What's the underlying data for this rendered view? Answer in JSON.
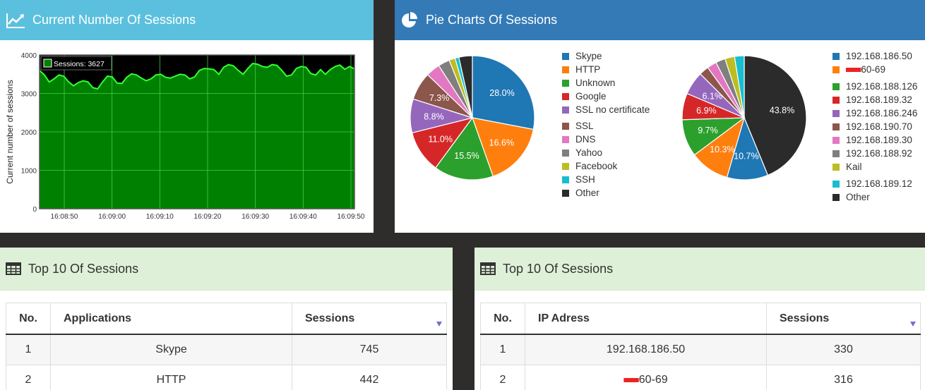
{
  "line_panel": {
    "title": "Current Number Of Sessions"
  },
  "pie_panel": {
    "title": "Pie Charts Of Sessions"
  },
  "apps_table": {
    "title": "Top 10 Of Sessions",
    "columns": [
      "No.",
      "Applications",
      "Sessions"
    ],
    "rows": [
      [
        "1",
        "Skype",
        "745"
      ],
      [
        "2",
        "HTTP",
        "442"
      ]
    ]
  },
  "ip_table": {
    "title": "Top 10 Of Sessions",
    "columns": [
      "No.",
      "IP Adress",
      "Sessions"
    ],
    "rows": [
      [
        "1",
        "192.168.186.50",
        "330"
      ],
      [
        "2",
        "60-69",
        "316"
      ]
    ]
  },
  "chart_data": [
    {
      "type": "area",
      "ylabel": "Current number of sessions",
      "ylim": [
        0,
        4000
      ],
      "yticks": [
        0,
        1000,
        2000,
        3000,
        4000
      ],
      "xticks": [
        "16:08:50",
        "16:09:00",
        "16:09:10",
        "16:09:20",
        "16:09:30",
        "16:09:40",
        "16:09:50"
      ],
      "xlim": [
        0,
        65
      ],
      "legend": "Sessions: 3627",
      "grid": true,
      "colors": {
        "fill": "#008000",
        "line": "#33ff33",
        "background": "#000000"
      },
      "x": [
        0,
        1,
        2,
        3,
        4,
        5,
        6,
        7,
        8,
        9,
        10,
        11,
        12,
        13,
        14,
        15,
        16,
        17,
        18,
        19,
        20,
        21,
        22,
        23,
        24,
        25,
        26,
        27,
        28,
        29,
        30,
        31,
        32,
        33,
        34,
        35,
        36,
        37,
        38,
        39,
        40,
        41,
        42,
        43,
        44,
        45,
        46,
        47,
        48,
        49,
        50,
        51,
        52,
        53,
        54,
        55,
        56,
        57,
        58,
        59,
        60,
        61,
        62,
        63,
        64,
        65
      ],
      "values": [
        3600,
        3480,
        3300,
        3380,
        3480,
        3450,
        3300,
        3200,
        3280,
        3330,
        3300,
        3150,
        3120,
        3300,
        3450,
        3430,
        3270,
        3260,
        3420,
        3510,
        3480,
        3400,
        3330,
        3380,
        3480,
        3500,
        3420,
        3400,
        3450,
        3500,
        3480,
        3380,
        3430,
        3600,
        3650,
        3640,
        3620,
        3500,
        3680,
        3750,
        3720,
        3600,
        3500,
        3650,
        3780,
        3760,
        3700,
        3680,
        3750,
        3730,
        3600,
        3450,
        3480,
        3650,
        3700,
        3680,
        3520,
        3480,
        3620,
        3500,
        3620,
        3700,
        3740,
        3627,
        3700,
        3640
      ]
    },
    {
      "type": "pie",
      "categories": [
        "Skype",
        "HTTP",
        "Unknown",
        "Google",
        "SSL no certificate",
        "SSL",
        "DNS",
        "Yahoo",
        "Facebook",
        "SSH",
        "Other"
      ],
      "values": [
        28.0,
        16.6,
        15.5,
        11.0,
        8.8,
        7.3,
        3.7,
        3.0,
        1.6,
        1.0,
        3.5
      ],
      "data_labels": [
        "28.0%",
        "16.6%",
        "15.5%",
        "11.0%",
        "8.8%",
        "7.3%",
        "",
        "",
        "",
        "",
        ""
      ],
      "colors": [
        "#1f77b4",
        "#ff7f0e",
        "#2ca02c",
        "#d62728",
        "#9467bd",
        "#8c564b",
        "#e377c2",
        "#7f7f7f",
        "#bcbd22",
        "#17becf",
        "#2b2b2b"
      ],
      "legend": "right"
    },
    {
      "type": "pie",
      "categories": [
        "Other",
        "192.168.186.50",
        "60-69",
        "192.168.188.126",
        "192.168.189.32",
        "192.168.186.246",
        "192.168.190.70",
        "192.168.189.30",
        "192.168.188.92",
        "Kail",
        "192.168.189.12"
      ],
      "values": [
        43.8,
        10.7,
        10.3,
        9.7,
        6.9,
        6.1,
        2.5,
        2.5,
        2.5,
        2.5,
        2.5
      ],
      "data_labels": [
        "43.8%",
        "10.7%",
        "10.3%",
        "9.7%",
        "6.9%",
        "6.1%",
        "",
        "",
        "",
        "",
        ""
      ],
      "colors": [
        "#2b2b2b",
        "#1f77b4",
        "#ff7f0e",
        "#2ca02c",
        "#d62728",
        "#9467bd",
        "#8c564b",
        "#e377c2",
        "#7f7f7f",
        "#bcbd22",
        "#17becf"
      ],
      "legend_order": [
        "192.168.186.50",
        "60-69",
        "192.168.188.126",
        "192.168.189.32",
        "192.168.186.246",
        "192.168.190.70",
        "192.168.189.30",
        "192.168.188.92",
        "Kail",
        "192.168.189.12",
        "Other"
      ],
      "legend": "right"
    }
  ]
}
